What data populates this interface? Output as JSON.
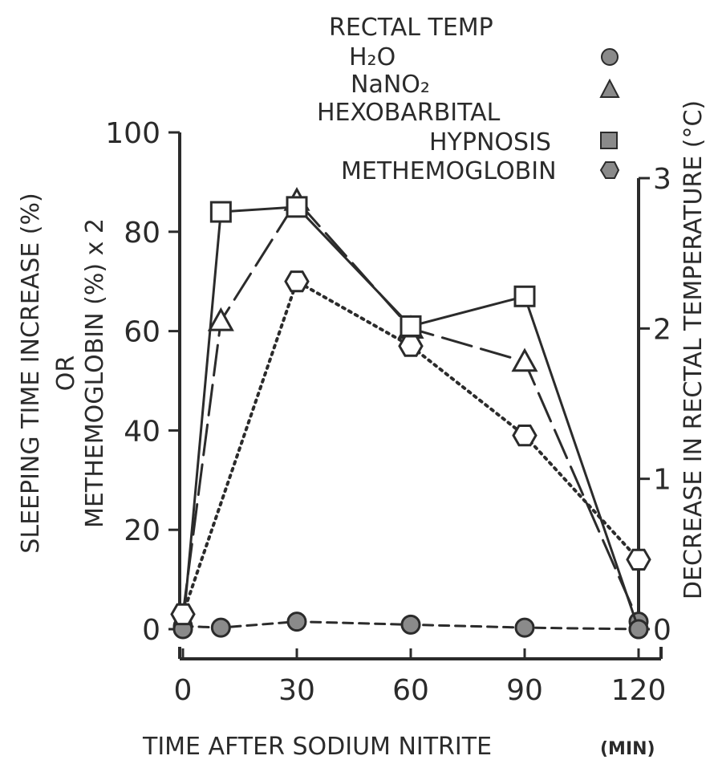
{
  "chart_data": {
    "type": "line",
    "xlabel": "TIME AFTER SODIUM NITRITE",
    "xunit": "(MIN)",
    "ylabel_left_line1": "SLEEPING TIME INCREASE (%)",
    "ylabel_left_line2": "OR",
    "ylabel_left_line3": "METHEMOGLOBIN (%) x 2",
    "ylabel_right": "DECREASE IN RECTAL TEMPERATURE (°C)",
    "x_ticks": [
      "0",
      "30",
      "60",
      "90",
      "120"
    ],
    "xlim": [
      0,
      120
    ],
    "y_left_ticks": [
      "0",
      "20",
      "40",
      "60",
      "80",
      "100"
    ],
    "ylim_left": [
      0,
      100
    ],
    "y_right_ticks": [
      "0",
      "1",
      "2",
      "3"
    ],
    "ylim_right": [
      0,
      3
    ],
    "legend": {
      "heading": "RECTAL TEMP",
      "items": [
        {
          "key": "h2o",
          "label": "H₂O",
          "marker": "circle-filled"
        },
        {
          "key": "nano2",
          "label": "NaNO₂",
          "marker": "triangle-filled"
        },
        {
          "key": "hypnosis",
          "label_line1": "HEXOBARBITAL",
          "label_line2": "HYPNOSIS",
          "marker": "square-filled"
        },
        {
          "key": "methemoglobin",
          "label": "METHEMOGLOBIN",
          "marker": "hexagon-filled"
        }
      ]
    },
    "series": [
      {
        "key": "h2o",
        "axis": "right",
        "style": "dashed-short",
        "marker": "circle-filled",
        "x": [
          0,
          10,
          30,
          60,
          90,
          120
        ],
        "y": [
          0.02,
          0.01,
          0.05,
          0.03,
          0.01,
          0.0
        ]
      },
      {
        "key": "nano2",
        "axis": "right",
        "style": "dashed-long",
        "marker": "triangle-open",
        "x": [
          0,
          10,
          30,
          60,
          90,
          120
        ],
        "y": [
          0.1,
          2.05,
          2.85,
          2.0,
          1.78,
          0.05
        ]
      },
      {
        "key": "hypnosis",
        "axis": "left",
        "style": "solid",
        "marker": "square-open",
        "x": [
          0,
          10,
          30,
          60,
          90,
          120
        ],
        "y": [
          0,
          84,
          85,
          61,
          67,
          0
        ]
      },
      {
        "key": "methemoglobin",
        "axis": "left",
        "style": "dotted",
        "marker": "hexagon-open",
        "x": [
          0,
          30,
          60,
          90,
          120
        ],
        "y": [
          3,
          70,
          57,
          39,
          14
        ]
      }
    ],
    "colors": {
      "ink": "#2b2b2b",
      "filled_marker": "#8a8a8a"
    }
  }
}
